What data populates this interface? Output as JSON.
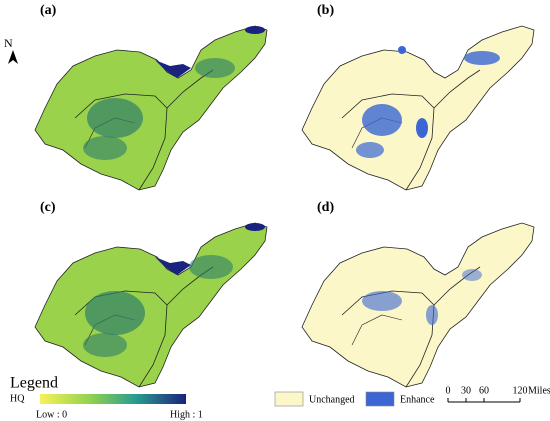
{
  "panels": [
    {
      "label": "(a)"
    },
    {
      "label": "(b)"
    },
    {
      "label": "(c)"
    },
    {
      "label": "(d)"
    }
  ],
  "north": "N",
  "legend": {
    "title": "Legend",
    "variable": "HQ",
    "low": "Low : 0",
    "high": "High : 1"
  },
  "categories": [
    {
      "name": "Unchanged",
      "color": "#fbf7c8"
    },
    {
      "name": "Enhance",
      "color": "#3b66d4"
    }
  ],
  "scale_bar": {
    "ticks": [
      "0",
      "30",
      "60",
      "120"
    ],
    "unit": "Miles"
  }
}
